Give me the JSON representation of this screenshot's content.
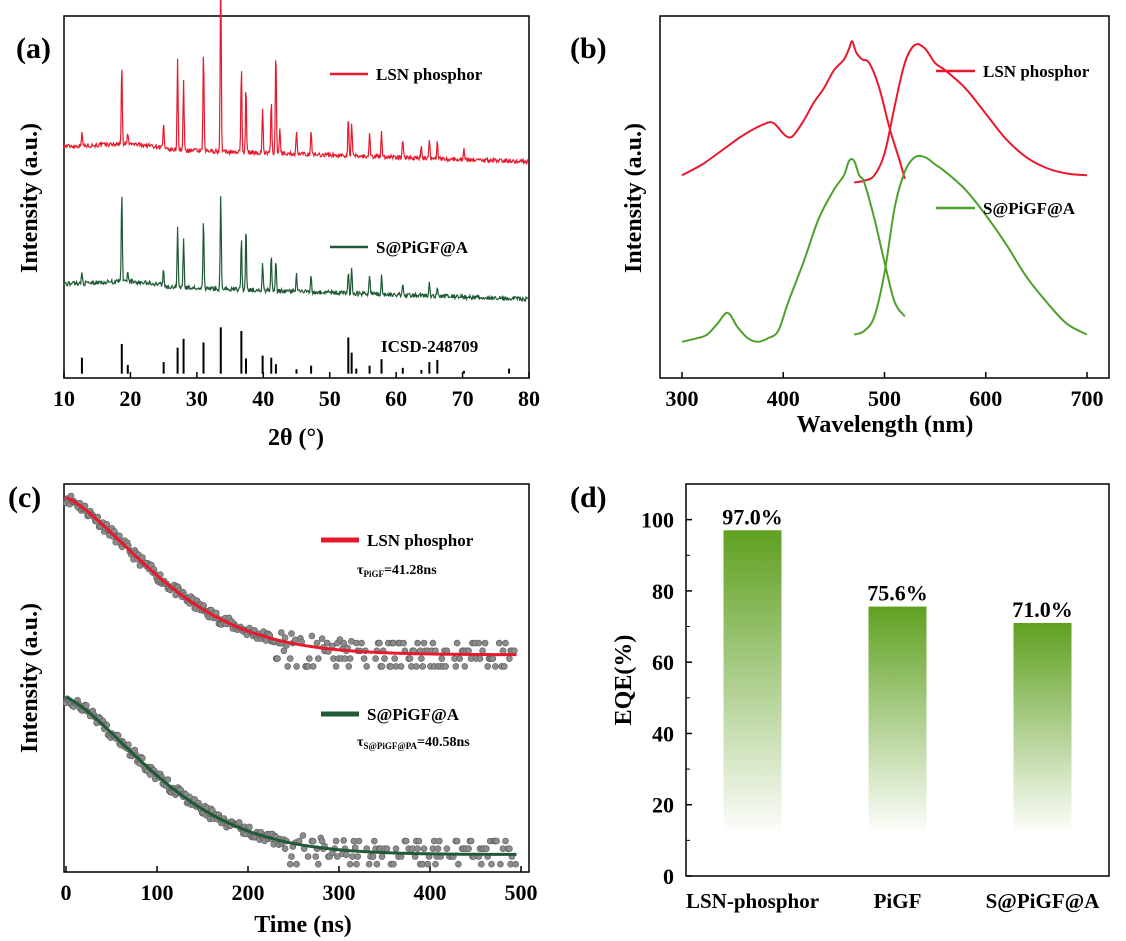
{
  "colors": {
    "red": "#e8192c",
    "green": "#1f5a34",
    "green_b": "#4ea02c",
    "bar_top": "#5fa020",
    "scatter": "#8c8c8c",
    "black": "#000000"
  },
  "chart_data": [
    {
      "panel": "(a)",
      "type": "line",
      "xlabel": "2θ (°)",
      "ylabel": "Intensity (a.u.)",
      "xlim": [
        10,
        80
      ],
      "xticks": [
        10,
        20,
        30,
        40,
        50,
        60,
        70,
        80
      ],
      "series": [
        {
          "name": "LSN phosphor",
          "color": "#e8192c",
          "baseline": 0.64,
          "peaks": [
            [
              12.7,
              0.04
            ],
            [
              18.7,
              0.22
            ],
            [
              19.6,
              0.03
            ],
            [
              25.0,
              0.07
            ],
            [
              27.1,
              0.25
            ],
            [
              28.0,
              0.19
            ],
            [
              31.0,
              0.28
            ],
            [
              33.6,
              0.51
            ],
            [
              36.7,
              0.24
            ],
            [
              37.4,
              0.19
            ],
            [
              39.9,
              0.13
            ],
            [
              41.2,
              0.15
            ],
            [
              41.9,
              0.29
            ],
            [
              42.5,
              0.07
            ],
            [
              45.0,
              0.06
            ],
            [
              47.2,
              0.07
            ],
            [
              52.8,
              0.11
            ],
            [
              53.3,
              0.09
            ],
            [
              56.0,
              0.07
            ],
            [
              57.8,
              0.07
            ],
            [
              61.0,
              0.05
            ],
            [
              63.8,
              0.03
            ],
            [
              65.0,
              0.05
            ],
            [
              66.2,
              0.05
            ],
            [
              70.2,
              0.03
            ]
          ]
        },
        {
          "name": "S@PiGF@A",
          "color": "#1f5a34",
          "baseline": 0.26,
          "peaks": [
            [
              12.7,
              0.03
            ],
            [
              18.7,
              0.25
            ],
            [
              19.6,
              0.03
            ],
            [
              25.0,
              0.05
            ],
            [
              27.1,
              0.17
            ],
            [
              28.0,
              0.14
            ],
            [
              31.0,
              0.19
            ],
            [
              33.6,
              0.27
            ],
            [
              36.7,
              0.15
            ],
            [
              37.4,
              0.18
            ],
            [
              39.9,
              0.08
            ],
            [
              41.2,
              0.1
            ],
            [
              41.9,
              0.09
            ],
            [
              45.0,
              0.05
            ],
            [
              47.2,
              0.05
            ],
            [
              52.8,
              0.06
            ],
            [
              53.3,
              0.07
            ],
            [
              56.0,
              0.05
            ],
            [
              57.8,
              0.05
            ],
            [
              61.0,
              0.03
            ],
            [
              65.0,
              0.04
            ],
            [
              66.2,
              0.03
            ]
          ]
        }
      ],
      "reference": {
        "name": "ICSD-248709",
        "sticks": [
          [
            12.7,
            0.22
          ],
          [
            18.7,
            0.41
          ],
          [
            19.6,
            0.12
          ],
          [
            25.0,
            0.16
          ],
          [
            27.1,
            0.36
          ],
          [
            28.0,
            0.48
          ],
          [
            31.0,
            0.43
          ],
          [
            33.6,
            0.64
          ],
          [
            36.7,
            0.59
          ],
          [
            37.4,
            0.21
          ],
          [
            39.9,
            0.25
          ],
          [
            41.2,
            0.22
          ],
          [
            41.9,
            0.13
          ],
          [
            45.0,
            0.06
          ],
          [
            47.2,
            0.11
          ],
          [
            52.8,
            0.5
          ],
          [
            53.3,
            0.29
          ],
          [
            54.0,
            0.07
          ],
          [
            56.0,
            0.11
          ],
          [
            57.8,
            0.2
          ],
          [
            61.0,
            0.08
          ],
          [
            63.8,
            0.05
          ],
          [
            65.0,
            0.16
          ],
          [
            66.2,
            0.19
          ],
          [
            70.2,
            0.04
          ],
          [
            77.0,
            0.07
          ]
        ]
      }
    },
    {
      "panel": "(b)",
      "type": "line",
      "xlabel": "Wavelength (nm)",
      "ylabel": "Intensity (a.u.)",
      "xlim": [
        300,
        700
      ],
      "xticks": [
        300,
        400,
        500,
        600,
        700
      ],
      "series": [
        {
          "name": "LSN phosphor",
          "color": "#e8192c",
          "role": "excitation",
          "x": [
            300,
            320,
            340,
            360,
            380,
            390,
            400,
            405,
            410,
            420,
            430,
            440,
            450,
            460,
            465,
            468,
            472,
            478,
            485,
            495,
            505,
            515,
            520
          ],
          "y": [
            0.56,
            0.59,
            0.63,
            0.67,
            0.7,
            0.705,
            0.675,
            0.665,
            0.67,
            0.71,
            0.76,
            0.8,
            0.85,
            0.88,
            0.91,
            0.93,
            0.9,
            0.88,
            0.87,
            0.8,
            0.69,
            0.6,
            0.55
          ]
        },
        {
          "name": "LSN phosphor",
          "color": "#e8192c",
          "role": "emission",
          "x": [
            470,
            480,
            490,
            500,
            510,
            520,
            530,
            540,
            550,
            560,
            580,
            600,
            620,
            640,
            660,
            680,
            700
          ],
          "y": [
            0.54,
            0.545,
            0.56,
            0.62,
            0.75,
            0.87,
            0.92,
            0.91,
            0.87,
            0.85,
            0.8,
            0.73,
            0.66,
            0.61,
            0.58,
            0.565,
            0.56
          ]
        },
        {
          "name": "S@PiGF@A",
          "color": "#4ea02c",
          "role": "excitation",
          "x": [
            300,
            315,
            325,
            335,
            345,
            355,
            365,
            375,
            385,
            395,
            405,
            420,
            435,
            450,
            460,
            465,
            470,
            475,
            480,
            490,
            500,
            510,
            520
          ],
          "y": [
            0.1,
            0.11,
            0.12,
            0.15,
            0.18,
            0.14,
            0.11,
            0.1,
            0.11,
            0.13,
            0.21,
            0.32,
            0.44,
            0.52,
            0.56,
            0.6,
            0.6,
            0.56,
            0.54,
            0.44,
            0.32,
            0.21,
            0.17
          ]
        },
        {
          "name": "S@PiGF@A",
          "color": "#4ea02c",
          "role": "emission",
          "x": [
            470,
            480,
            490,
            500,
            510,
            520,
            530,
            540,
            550,
            560,
            580,
            600,
            620,
            640,
            660,
            680,
            700
          ],
          "y": [
            0.12,
            0.13,
            0.17,
            0.29,
            0.47,
            0.57,
            0.61,
            0.61,
            0.59,
            0.57,
            0.52,
            0.45,
            0.37,
            0.28,
            0.21,
            0.15,
            0.12
          ]
        }
      ]
    },
    {
      "panel": "(c)",
      "type": "scatter",
      "xlabel": "Time (ns)",
      "ylabel": "Intensity (a.u.)",
      "xlim": [
        0,
        500
      ],
      "xticks": [
        0,
        100,
        200,
        300,
        400,
        500
      ],
      "series": [
        {
          "name": "LSN phosphor",
          "color": "#e8192c",
          "tau_label": "τ",
          "tau_sub": "PiGF",
          "tau_value": "=41.28ns",
          "start": 0.965,
          "floor": 0.56,
          "tau": 95,
          "scatter_levels": [
            0.59,
            0.57,
            0.55,
            0.53
          ],
          "break_ns": 230
        },
        {
          "name": "S@PiGF@A",
          "color": "#1f5a34",
          "tau_label": "τ",
          "tau_sub": "S@PiGF@PA",
          "tau_value": "=40.58ns",
          "start": 0.45,
          "floor": 0.045,
          "tau": 93,
          "scatter_levels": [
            0.08,
            0.06,
            0.04,
            0.02
          ],
          "break_ns": 240
        }
      ]
    },
    {
      "panel": "(d)",
      "type": "bar",
      "xlabel": "",
      "ylabel": "EQE(%)",
      "ylim": [
        0,
        110
      ],
      "yticks": [
        0,
        20,
        40,
        60,
        80,
        100
      ],
      "categories": [
        "LSN-phosphor",
        "PiGF",
        "S@PiGF@A"
      ],
      "values": [
        97.0,
        75.6,
        71.0
      ],
      "labels": [
        "97.0%",
        "75.6%",
        "71.0%"
      ]
    }
  ]
}
